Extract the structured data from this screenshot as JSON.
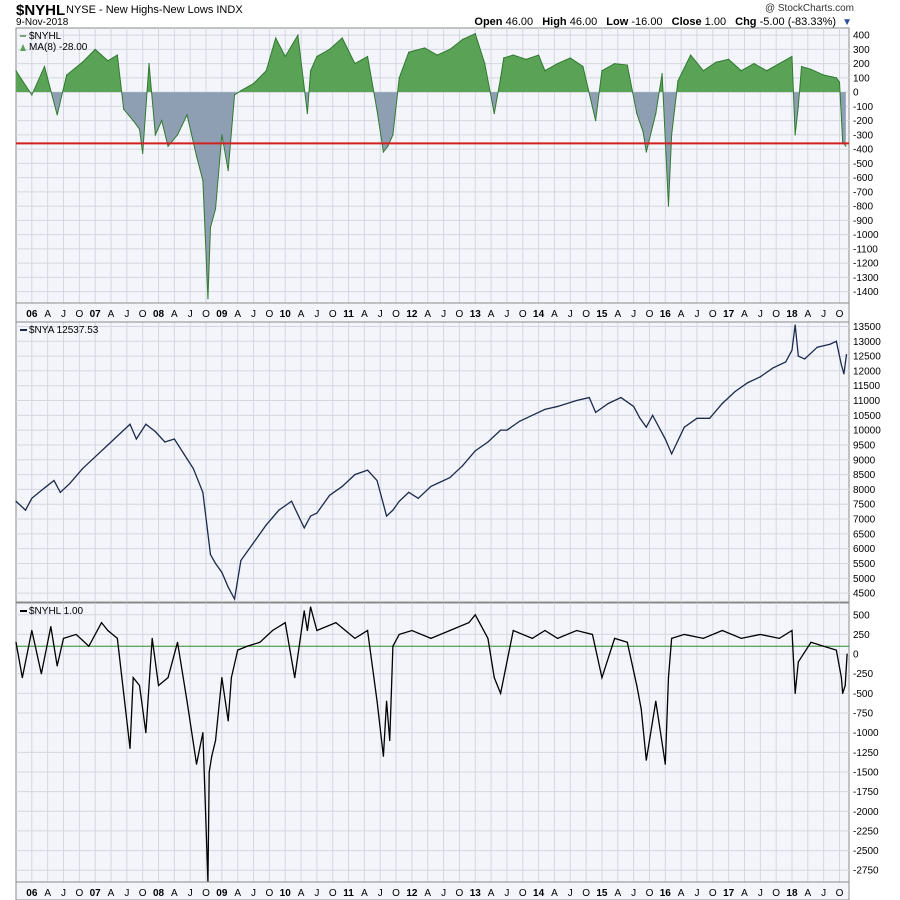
{
  "header": {
    "symbol": "$NYHL",
    "description": "NYSE - New Highs-New Lows  INDX",
    "date": "9-Nov-2018",
    "watermark": "@ StockCharts.com",
    "open_label": "Open",
    "open_value": "46.00",
    "high_label": "High",
    "high_value": "46.00",
    "low_label": "Low",
    "low_value": "-16.00",
    "close_label": "Close",
    "close_value": "1.00",
    "chg_label": "Chg",
    "chg_value": "-5.00 (-83.33%)"
  },
  "colors": {
    "positive_fill": "#5aa255",
    "negative_fill": "#8f9fb3",
    "reference_line": "#d0201f",
    "nya_line": "#1c2a4c",
    "raw_line": "#000000",
    "zero_line": "#2e8b2e"
  },
  "chart_data": [
    {
      "type": "area",
      "panel": "top",
      "labels": [
        "$NYHL",
        "MA(8) -28.00"
      ],
      "y_ticks": [
        "400",
        "300",
        "200",
        "100",
        "0",
        "-100",
        "-200",
        "-300",
        "-400",
        "-500",
        "-600",
        "-700",
        "-800",
        "-900",
        "-1000",
        "-1100",
        "-1200",
        "-1300",
        "-1400"
      ],
      "ylim": [
        -1480,
        450
      ],
      "reference_line": -360,
      "x": [
        2005.75,
        2006.0,
        2006.2,
        2006.4,
        2006.55,
        2006.8,
        2007.0,
        2007.2,
        2007.35,
        2007.45,
        2007.6,
        2007.7,
        2007.75,
        2007.85,
        2007.95,
        2008.05,
        2008.15,
        2008.3,
        2008.45,
        2008.6,
        2008.7,
        2008.78,
        2008.82,
        2008.9,
        2009.0,
        2009.1,
        2009.2,
        2009.3,
        2009.5,
        2009.7,
        2009.85,
        2010.0,
        2010.2,
        2010.35,
        2010.4,
        2010.5,
        2010.7,
        2010.9,
        2011.1,
        2011.3,
        2011.45,
        2011.55,
        2011.62,
        2011.7,
        2011.8,
        2011.95,
        2012.2,
        2012.4,
        2012.6,
        2012.8,
        2013.0,
        2013.15,
        2013.3,
        2013.4,
        2013.45,
        2013.6,
        2013.8,
        2014.0,
        2014.1,
        2014.3,
        2014.5,
        2014.7,
        2014.9,
        2015.0,
        2015.2,
        2015.4,
        2015.55,
        2015.65,
        2015.7,
        2015.85,
        2015.95,
        2016.05,
        2016.1,
        2016.2,
        2016.4,
        2016.6,
        2016.8,
        2017.0,
        2017.2,
        2017.4,
        2017.6,
        2017.8,
        2018.0,
        2018.05,
        2018.1,
        2018.15,
        2018.3,
        2018.5,
        2018.7,
        2018.75,
        2018.8,
        2018.85
      ],
      "values": [
        150,
        -20,
        180,
        -160,
        120,
        210,
        300,
        220,
        260,
        -120,
        -200,
        -260,
        -430,
        200,
        -300,
        -200,
        -380,
        -300,
        -160,
        -450,
        -620,
        -1450,
        -950,
        -820,
        -300,
        -550,
        -20,
        10,
        60,
        150,
        380,
        250,
        400,
        -150,
        150,
        250,
        300,
        380,
        200,
        250,
        -130,
        -420,
        -380,
        -300,
        100,
        280,
        310,
        260,
        300,
        370,
        410,
        200,
        -150,
        100,
        240,
        260,
        230,
        260,
        150,
        200,
        240,
        180,
        -200,
        150,
        200,
        190,
        -150,
        -280,
        -420,
        -150,
        130,
        -800,
        -300,
        80,
        260,
        150,
        210,
        230,
        150,
        200,
        150,
        200,
        250,
        -300,
        -100,
        180,
        160,
        120,
        100,
        70,
        -350,
        -380
      ],
      "xlim": [
        2005.75,
        2018.9
      ]
    },
    {
      "type": "line",
      "panel": "middle",
      "labels": [
        "$NYA 12537.53"
      ],
      "y_ticks": [
        "13500",
        "13000",
        "12500",
        "12000",
        "11500",
        "11000",
        "10500",
        "10000",
        "9500",
        "9000",
        "8500",
        "8000",
        "7500",
        "7000",
        "6500",
        "6000",
        "5500",
        "5000",
        "4500"
      ],
      "ylim": [
        4200,
        13650
      ],
      "x": [
        2005.75,
        2005.9,
        2006.0,
        2006.2,
        2006.35,
        2006.45,
        2006.6,
        2006.8,
        2007.0,
        2007.2,
        2007.4,
        2007.55,
        2007.65,
        2007.8,
        2007.95,
        2008.1,
        2008.25,
        2008.4,
        2008.55,
        2008.7,
        2008.78,
        2008.82,
        2008.9,
        2009.0,
        2009.1,
        2009.2,
        2009.3,
        2009.5,
        2009.7,
        2009.9,
        2010.1,
        2010.3,
        2010.4,
        2010.5,
        2010.7,
        2010.9,
        2011.1,
        2011.3,
        2011.45,
        2011.6,
        2011.7,
        2011.8,
        2011.95,
        2012.1,
        2012.3,
        2012.4,
        2012.6,
        2012.8,
        2013.0,
        2013.2,
        2013.4,
        2013.5,
        2013.7,
        2013.9,
        2014.1,
        2014.3,
        2014.6,
        2014.8,
        2014.9,
        2015.1,
        2015.3,
        2015.5,
        2015.6,
        2015.7,
        2015.8,
        2016.0,
        2016.1,
        2016.3,
        2016.5,
        2016.7,
        2016.9,
        2017.1,
        2017.3,
        2017.5,
        2017.7,
        2017.9,
        2018.0,
        2018.05,
        2018.1,
        2018.2,
        2018.4,
        2018.6,
        2018.7,
        2018.78,
        2018.82,
        2018.86
      ],
      "values": [
        7600,
        7300,
        7700,
        8050,
        8300,
        7900,
        8200,
        8700,
        9100,
        9500,
        9900,
        10200,
        9700,
        10200,
        9950,
        9600,
        9700,
        9200,
        8700,
        7900,
        6500,
        5800,
        5500,
        5200,
        4700,
        4300,
        5600,
        6200,
        6800,
        7300,
        7600,
        6700,
        7100,
        7200,
        7800,
        8100,
        8500,
        8650,
        8300,
        7100,
        7300,
        7600,
        7900,
        7700,
        8100,
        8200,
        8400,
        8800,
        9300,
        9600,
        10000,
        10000,
        10300,
        10500,
        10700,
        10800,
        11000,
        11100,
        10600,
        10900,
        11100,
        10800,
        10400,
        10100,
        10500,
        9700,
        9200,
        10100,
        10400,
        10400,
        10900,
        11300,
        11600,
        11800,
        12100,
        12300,
        12700,
        13550,
        12500,
        12400,
        12800,
        12900,
        13000,
        12200,
        11900,
        12550
      ],
      "xlim": [
        2005.75,
        2018.9
      ]
    },
    {
      "type": "line",
      "panel": "bottom",
      "labels": [
        "$NYHL 1.00"
      ],
      "y_ticks": [
        "500",
        "250",
        "0",
        "-250",
        "-500",
        "-750",
        "-1000",
        "-1250",
        "-1500",
        "-1750",
        "-2000",
        "-2250",
        "-2500",
        "-2750"
      ],
      "ylim": [
        -2900,
        650
      ],
      "reference_line": 100,
      "x": [
        2005.75,
        2005.85,
        2006.0,
        2006.15,
        2006.3,
        2006.4,
        2006.5,
        2006.7,
        2006.9,
        2007.1,
        2007.2,
        2007.35,
        2007.45,
        2007.55,
        2007.6,
        2007.7,
        2007.8,
        2007.9,
        2008.0,
        2008.15,
        2008.3,
        2008.45,
        2008.6,
        2008.7,
        2008.78,
        2008.8,
        2008.84,
        2008.9,
        2009.0,
        2009.1,
        2009.15,
        2009.25,
        2009.4,
        2009.6,
        2009.8,
        2010.0,
        2010.15,
        2010.3,
        2010.35,
        2010.4,
        2010.5,
        2010.8,
        2011.1,
        2011.3,
        2011.45,
        2011.55,
        2011.6,
        2011.65,
        2011.7,
        2011.8,
        2012.0,
        2012.3,
        2012.6,
        2012.9,
        2013.0,
        2013.2,
        2013.3,
        2013.4,
        2013.6,
        2013.9,
        2014.1,
        2014.3,
        2014.6,
        2014.85,
        2015.0,
        2015.2,
        2015.4,
        2015.55,
        2015.62,
        2015.7,
        2015.85,
        2016.0,
        2016.05,
        2016.1,
        2016.3,
        2016.6,
        2016.9,
        2017.2,
        2017.5,
        2017.8,
        2018.0,
        2018.05,
        2018.1,
        2018.3,
        2018.5,
        2018.7,
        2018.78,
        2018.8,
        2018.84,
        2018.87
      ],
      "values": [
        150,
        -300,
        300,
        -250,
        350,
        -150,
        200,
        250,
        100,
        400,
        300,
        200,
        -500,
        -1200,
        -300,
        -400,
        -1000,
        200,
        -400,
        -300,
        150,
        -600,
        -1400,
        -1000,
        -2900,
        -1500,
        -1300,
        -1100,
        -300,
        -850,
        -300,
        50,
        100,
        150,
        300,
        400,
        -300,
        550,
        300,
        600,
        300,
        400,
        200,
        300,
        -600,
        -1300,
        -600,
        -1100,
        100,
        250,
        300,
        200,
        300,
        400,
        500,
        200,
        -300,
        -500,
        300,
        200,
        300,
        200,
        300,
        250,
        -300,
        200,
        150,
        -400,
        -700,
        -1350,
        -600,
        -1400,
        -300,
        200,
        250,
        200,
        300,
        200,
        250,
        200,
        300,
        -500,
        -100,
        150,
        100,
        50,
        -300,
        -500,
        -400,
        0
      ],
      "xlim": [
        2005.75,
        2018.9
      ]
    }
  ],
  "x_axis": {
    "ticks": [
      "06",
      "A",
      "J",
      "O",
      "07",
      "A",
      "J",
      "O",
      "08",
      "A",
      "J",
      "O",
      "09",
      "A",
      "J",
      "O",
      "10",
      "A",
      "J",
      "O",
      "11",
      "A",
      "J",
      "O",
      "12",
      "A",
      "J",
      "O",
      "13",
      "A",
      "J",
      "O",
      "14",
      "A",
      "J",
      "O",
      "15",
      "A",
      "J",
      "O",
      "16",
      "A",
      "J",
      "O",
      "17",
      "A",
      "J",
      "O",
      "18",
      "A",
      "J",
      "O"
    ],
    "tick_x": [
      2006.0,
      2006.25,
      2006.5,
      2006.75,
      2007.0,
      2007.25,
      2007.5,
      2007.75,
      2008.0,
      2008.25,
      2008.5,
      2008.75,
      2009.0,
      2009.25,
      2009.5,
      2009.75,
      2010.0,
      2010.25,
      2010.5,
      2010.75,
      2011.0,
      2011.25,
      2011.5,
      2011.75,
      2012.0,
      2012.25,
      2012.5,
      2012.75,
      2013.0,
      2013.25,
      2013.5,
      2013.75,
      2014.0,
      2014.25,
      2014.5,
      2014.75,
      2015.0,
      2015.25,
      2015.5,
      2015.75,
      2016.0,
      2016.25,
      2016.5,
      2016.75,
      2017.0,
      2017.25,
      2017.5,
      2017.75,
      2018.0,
      2018.25,
      2018.5,
      2018.75
    ]
  }
}
